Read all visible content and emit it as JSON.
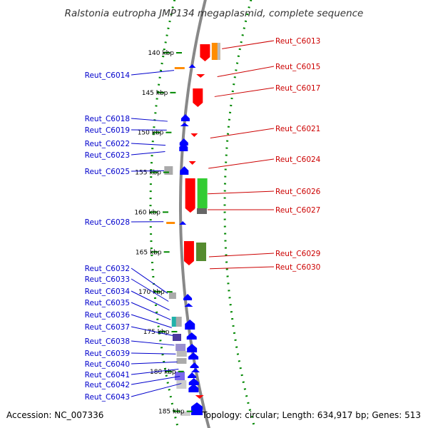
{
  "title": "Ralstonia eutropha JMP134 megaplasmid, complete sequence",
  "footer": {
    "accession": "Accession: NC_007336",
    "topology": "Topology: circular; Length: 634,917 bp; Genes: 513"
  },
  "colors": {
    "backbone": "#888888",
    "tick": "#008800",
    "forward_gene": "#ff0000",
    "reverse_gene": "#0000ff",
    "left_label": "#0000cc",
    "right_label": "#cc0000"
  },
  "scale_labels": [
    "140 kbp",
    "145 kbp",
    "150 kbp",
    "155 kbp",
    "160 kbp",
    "165 kbp",
    "170 kbp",
    "175 kbp",
    "180 kbp",
    "185 kbp"
  ],
  "left_genes": [
    {
      "label": "Reut_C6014",
      "target_kbp": 142.2
    },
    {
      "label": "Reut_C6018",
      "target_kbp": 148.6
    },
    {
      "label": "Reut_C6019",
      "target_kbp": 149.7
    },
    {
      "label": "Reut_C6022",
      "target_kbp": 151.6
    },
    {
      "label": "Reut_C6023",
      "target_kbp": 152.4
    },
    {
      "label": "Reut_C6025",
      "target_kbp": 154.8
    },
    {
      "label": "Reut_C6028",
      "target_kbp": 161.2
    },
    {
      "label": "Reut_C6032",
      "target_kbp": 170.2
    },
    {
      "label": "Reut_C6033",
      "target_kbp": 171.2
    },
    {
      "label": "Reut_C6034",
      "target_kbp": 172.3
    },
    {
      "label": "Reut_C6035",
      "target_kbp": 173.5
    },
    {
      "label": "Reut_C6036",
      "target_kbp": 174.5
    },
    {
      "label": "Reut_C6037",
      "target_kbp": 175.5
    },
    {
      "label": "Reut_C6038",
      "target_kbp": 176.7
    },
    {
      "label": "Reut_C6039",
      "target_kbp": 177.8
    },
    {
      "label": "Reut_C6040",
      "target_kbp": 178.8
    },
    {
      "label": "Reut_C6041",
      "target_kbp": 179.7
    },
    {
      "label": "Reut_C6042",
      "target_kbp": 180.6
    },
    {
      "label": "Reut_C6043",
      "target_kbp": 181.5
    }
  ],
  "right_genes": [
    {
      "label": "Reut_C6013",
      "target_kbp": 139.5
    },
    {
      "label": "Reut_C6015",
      "target_kbp": 143.0
    },
    {
      "label": "Reut_C6017",
      "target_kbp": 145.5
    },
    {
      "label": "Reut_C6021",
      "target_kbp": 150.7
    },
    {
      "label": "Reut_C6024",
      "target_kbp": 154.5
    },
    {
      "label": "Reut_C6026",
      "target_kbp": 157.7
    },
    {
      "label": "Reut_C6027",
      "target_kbp": 159.7
    },
    {
      "label": "Reut_C6029",
      "target_kbp": 165.6
    },
    {
      "label": "Reut_C6030",
      "target_kbp": 167.1
    }
  ]
}
